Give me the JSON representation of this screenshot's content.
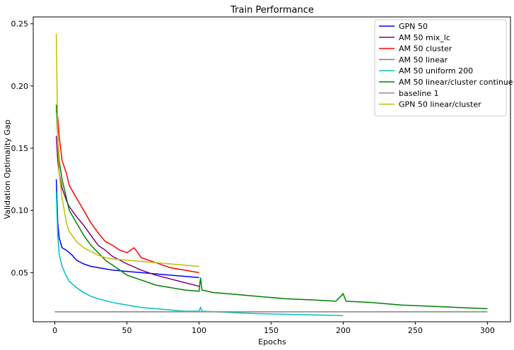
{
  "chart_data": {
    "type": "line",
    "title": "Train Performance",
    "xlabel": "Epochs",
    "ylabel": "Validation Optimality Gap",
    "xlim": [
      -15,
      316
    ],
    "ylim": [
      0.0105,
      0.2555
    ],
    "xticks": [
      0,
      50,
      100,
      150,
      200,
      250,
      300
    ],
    "yticks": [
      0.05,
      0.1,
      0.15,
      0.2,
      0.25
    ],
    "xtick_labels": [
      "0",
      "50",
      "100",
      "150",
      "200",
      "250",
      "300"
    ],
    "ytick_labels": [
      "0.05",
      "0.10",
      "0.15",
      "0.20",
      "0.25"
    ],
    "grid": false,
    "legend_position": "top-right",
    "series": [
      {
        "name": "GPN 50",
        "color": "#0000ff",
        "points": [
          [
            1,
            0.125
          ],
          [
            2,
            0.09
          ],
          [
            3,
            0.078
          ],
          [
            5,
            0.07
          ],
          [
            8,
            0.068
          ],
          [
            12,
            0.064
          ],
          [
            15,
            0.06
          ],
          [
            20,
            0.057
          ],
          [
            25,
            0.055
          ],
          [
            30,
            0.054
          ],
          [
            40,
            0.052
          ],
          [
            50,
            0.051
          ],
          [
            60,
            0.05
          ],
          [
            70,
            0.049
          ],
          [
            80,
            0.048
          ],
          [
            90,
            0.047
          ],
          [
            100,
            0.046
          ]
        ]
      },
      {
        "name": "AM 50 mix_lc",
        "color": "#800080",
        "points": [
          [
            1,
            0.16
          ],
          [
            2,
            0.14
          ],
          [
            3,
            0.13
          ],
          [
            5,
            0.118
          ],
          [
            8,
            0.108
          ],
          [
            10,
            0.103
          ],
          [
            15,
            0.095
          ],
          [
            20,
            0.088
          ],
          [
            25,
            0.08
          ],
          [
            30,
            0.072
          ],
          [
            35,
            0.068
          ],
          [
            40,
            0.063
          ],
          [
            50,
            0.057
          ],
          [
            60,
            0.052
          ],
          [
            70,
            0.048
          ],
          [
            80,
            0.045
          ],
          [
            90,
            0.042
          ],
          [
            100,
            0.039
          ]
        ]
      },
      {
        "name": "AM 50 cluster",
        "color": "#ff0000",
        "points": [
          [
            1,
            0.18
          ],
          [
            2,
            0.175
          ],
          [
            3,
            0.16
          ],
          [
            5,
            0.14
          ],
          [
            8,
            0.13
          ],
          [
            10,
            0.12
          ],
          [
            15,
            0.11
          ],
          [
            20,
            0.1
          ],
          [
            25,
            0.09
          ],
          [
            30,
            0.082
          ],
          [
            35,
            0.075
          ],
          [
            40,
            0.072
          ],
          [
            45,
            0.068
          ],
          [
            50,
            0.066
          ],
          [
            55,
            0.07
          ],
          [
            60,
            0.062
          ],
          [
            65,
            0.06
          ],
          [
            70,
            0.058
          ],
          [
            75,
            0.056
          ],
          [
            80,
            0.054
          ],
          [
            85,
            0.053
          ],
          [
            90,
            0.052
          ],
          [
            95,
            0.051
          ],
          [
            100,
            0.05
          ]
        ]
      },
      {
        "name": "AM 50 linear",
        "color": "#808080",
        "points": [
          [
            0,
            0.0185
          ],
          [
            300,
            0.0185
          ]
        ]
      },
      {
        "name": "AM 50 uniform 200",
        "color": "#00bfbf",
        "points": [
          [
            1,
            0.115
          ],
          [
            2,
            0.08
          ],
          [
            3,
            0.065
          ],
          [
            5,
            0.055
          ],
          [
            8,
            0.047
          ],
          [
            10,
            0.043
          ],
          [
            15,
            0.038
          ],
          [
            20,
            0.034
          ],
          [
            25,
            0.031
          ],
          [
            30,
            0.029
          ],
          [
            40,
            0.026
          ],
          [
            50,
            0.024
          ],
          [
            60,
            0.022
          ],
          [
            70,
            0.021
          ],
          [
            80,
            0.02
          ],
          [
            90,
            0.019
          ],
          [
            100,
            0.019
          ],
          [
            101,
            0.022
          ],
          [
            102,
            0.019
          ],
          [
            120,
            0.018
          ],
          [
            140,
            0.017
          ],
          [
            160,
            0.0165
          ],
          [
            180,
            0.016
          ],
          [
            200,
            0.0155
          ]
        ]
      },
      {
        "name": "AM 50 linear/cluster continue",
        "color": "#008000",
        "points": [
          [
            1,
            0.185
          ],
          [
            2,
            0.16
          ],
          [
            3,
            0.14
          ],
          [
            5,
            0.125
          ],
          [
            8,
            0.11
          ],
          [
            10,
            0.1
          ],
          [
            15,
            0.09
          ],
          [
            20,
            0.08
          ],
          [
            25,
            0.072
          ],
          [
            30,
            0.066
          ],
          [
            35,
            0.06
          ],
          [
            40,
            0.056
          ],
          [
            45,
            0.052
          ],
          [
            50,
            0.048
          ],
          [
            60,
            0.044
          ],
          [
            70,
            0.04
          ],
          [
            80,
            0.038
          ],
          [
            90,
            0.036
          ],
          [
            100,
            0.035
          ],
          [
            101,
            0.046
          ],
          [
            102,
            0.036
          ],
          [
            110,
            0.034
          ],
          [
            120,
            0.033
          ],
          [
            140,
            0.031
          ],
          [
            160,
            0.029
          ],
          [
            180,
            0.028
          ],
          [
            195,
            0.027
          ],
          [
            200,
            0.033
          ],
          [
            202,
            0.027
          ],
          [
            220,
            0.026
          ],
          [
            240,
            0.024
          ],
          [
            260,
            0.023
          ],
          [
            280,
            0.022
          ],
          [
            300,
            0.021
          ]
        ]
      },
      {
        "name": "baseline 1",
        "color": "#909090",
        "points": [
          [
            0,
            0.0185
          ],
          [
            300,
            0.0185
          ]
        ]
      },
      {
        "name": "GPN 50 linear/cluster",
        "color": "#bfbf00",
        "points": [
          [
            1,
            0.242
          ],
          [
            2,
            0.16
          ],
          [
            3,
            0.13
          ],
          [
            5,
            0.11
          ],
          [
            8,
            0.09
          ],
          [
            10,
            0.083
          ],
          [
            15,
            0.075
          ],
          [
            20,
            0.07
          ],
          [
            25,
            0.067
          ],
          [
            30,
            0.064
          ],
          [
            35,
            0.062
          ],
          [
            40,
            0.061
          ],
          [
            50,
            0.06
          ],
          [
            60,
            0.059
          ],
          [
            70,
            0.058
          ],
          [
            80,
            0.057
          ],
          [
            90,
            0.056
          ],
          [
            100,
            0.055
          ]
        ]
      }
    ]
  }
}
